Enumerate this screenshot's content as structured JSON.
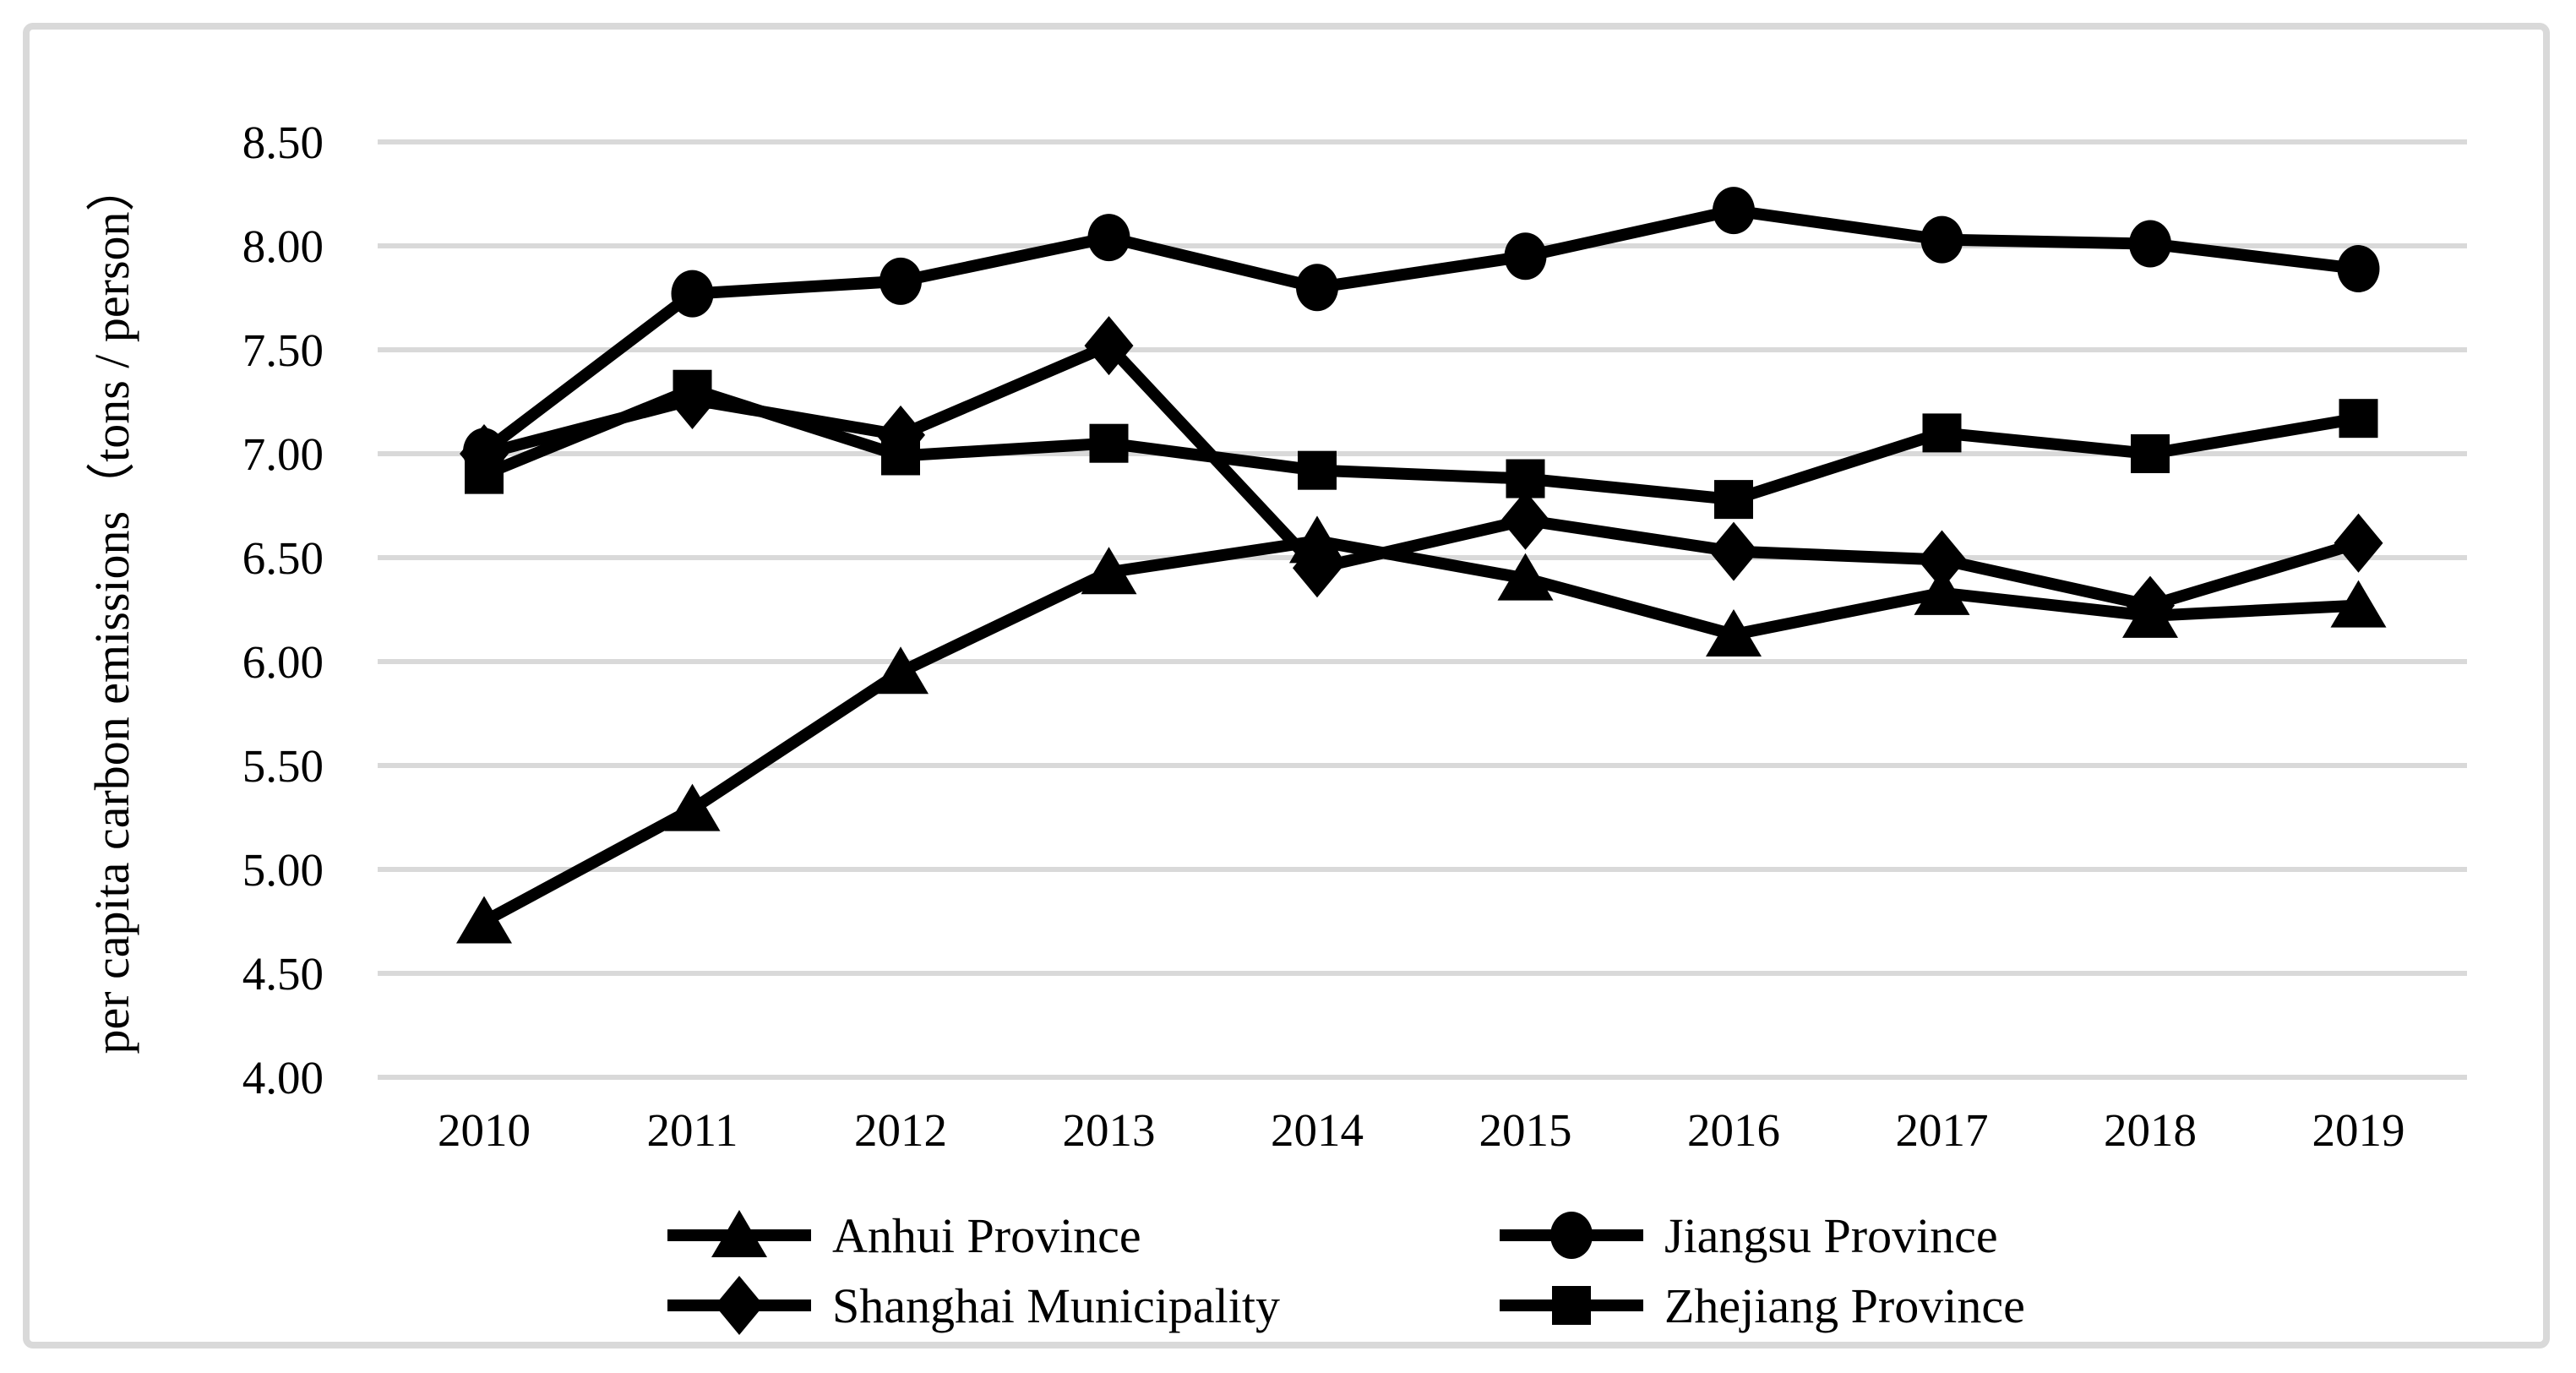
{
  "figure": {
    "background": "#ffffff",
    "frame_border_color": "#d9d9d9",
    "gridline_color": "#d9d9d9",
    "series_color": "#000000",
    "text_color": "#000000"
  },
  "chart_data": {
    "type": "line",
    "title": "",
    "xlabel": "",
    "ylabel": "per capita carbon emissions（tons / person）",
    "ylim": [
      4.0,
      8.5
    ],
    "ytick_step": 0.5,
    "ytick_labels": [
      "8.50",
      "8.00",
      "7.50",
      "7.00",
      "6.50",
      "6.00",
      "5.50",
      "5.00",
      "4.50",
      "4.00"
    ],
    "grid": "horizontal",
    "legend_position": "bottom-center",
    "x": [
      2010,
      2011,
      2012,
      2013,
      2014,
      2015,
      2016,
      2017,
      2018,
      2019
    ],
    "series": [
      {
        "name": "Anhui Province",
        "marker": "triangle",
        "values": [
          4.75,
          5.29,
          5.95,
          6.43,
          6.58,
          6.4,
          6.13,
          6.33,
          6.22,
          6.27
        ]
      },
      {
        "name": "Jiangsu Province",
        "marker": "circle",
        "values": [
          7.01,
          7.77,
          7.83,
          8.04,
          7.8,
          7.95,
          8.17,
          8.03,
          8.01,
          7.89
        ]
      },
      {
        "name": "Shanghai Municipality",
        "marker": "diamond",
        "values": [
          7.0,
          7.26,
          7.09,
          7.52,
          6.45,
          6.68,
          6.53,
          6.49,
          6.27,
          6.57
        ]
      },
      {
        "name": "Zhejiang Province",
        "marker": "square",
        "values": [
          6.9,
          7.31,
          6.99,
          7.05,
          6.92,
          6.88,
          6.78,
          7.1,
          7.0,
          7.17
        ]
      }
    ],
    "legend_rows": [
      [
        "Anhui Province",
        "Jiangsu Province"
      ],
      [
        "Shanghai Municipality",
        "Zhejiang Province"
      ]
    ]
  }
}
